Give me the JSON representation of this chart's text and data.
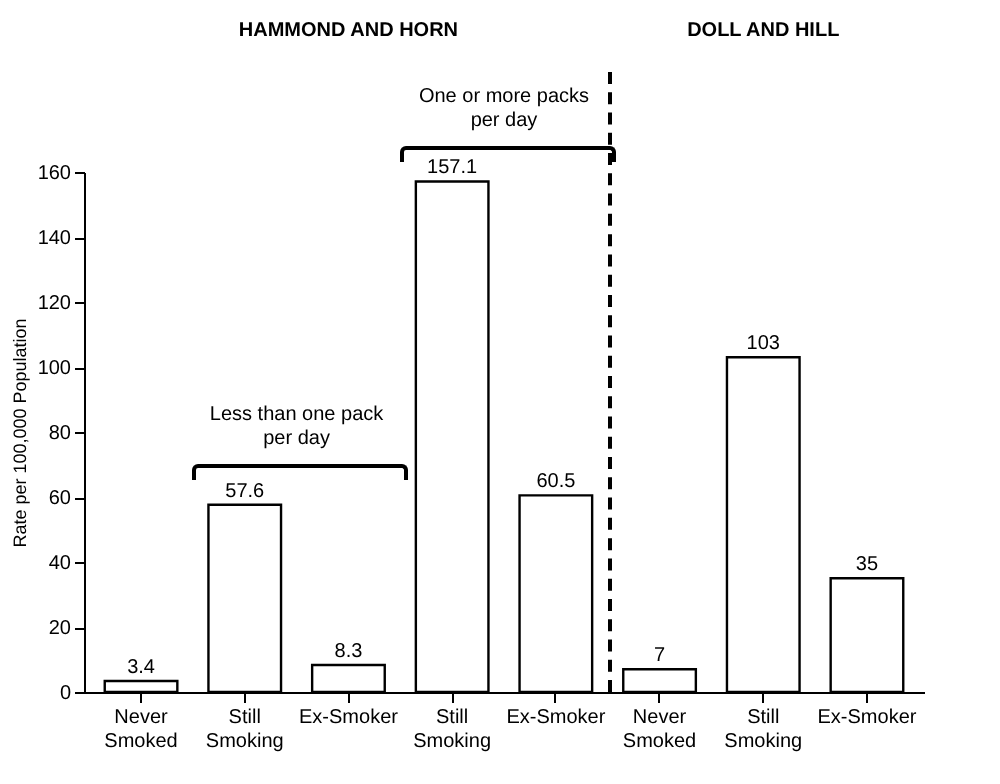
{
  "chart_data": {
    "type": "bar",
    "ylabel": "Rate per 100,000 Population",
    "categories": [
      "Never Smoked",
      "Still Smoking",
      "Ex-Smoker",
      "Still Smoking",
      "Ex-Smoker",
      "Never Smoked",
      "Still Smoking",
      "Ex-Smoker"
    ],
    "values": [
      3.4,
      57.6,
      8.3,
      157.1,
      60.5,
      7,
      103,
      35
    ],
    "color": "#ffffff",
    "ylim": [
      0,
      160
    ],
    "yticks": [
      0,
      20,
      40,
      60,
      80,
      100,
      120,
      140,
      160
    ],
    "data_labels": true,
    "annotations": [
      "HAMMOND AND HORN",
      "DOLL AND HILL",
      "Less than one pack per day",
      "One or more packs per day"
    ]
  }
}
